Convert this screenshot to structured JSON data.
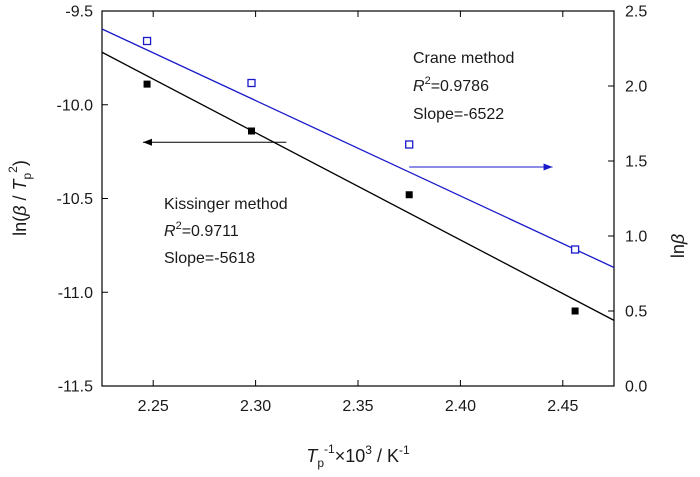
{
  "chart_data": {
    "type": "scatter",
    "x_title": {
      "base": "T",
      "sub": "p",
      "sup": "-1",
      "rest": "×10",
      "sup2": "3",
      "unit": " / K",
      "unit_sup": "-1"
    },
    "y_left_title": {
      "pre": "ln(",
      "beta": "β",
      "slash": " / ",
      "T": "T",
      "sub": "p",
      "sup": "2",
      "post": ")"
    },
    "y_right_title": {
      "ln": "ln",
      "beta": "β"
    },
    "x_range": [
      2.225,
      2.475
    ],
    "y_left_range": [
      -11.5,
      -9.5
    ],
    "y_right_range": [
      0.0,
      2.5
    ],
    "x_ticks": [
      "2.25",
      "2.30",
      "2.35",
      "2.40",
      "2.45"
    ],
    "y_left_ticks": [
      "-9.5",
      "-10.0",
      "-10.5",
      "-11.0",
      "-11.5"
    ],
    "y_right_ticks": [
      "2.5",
      "2.0",
      "1.5",
      "1.0",
      "0.5",
      "0.0"
    ],
    "series": [
      {
        "axis": "left",
        "marker": "filled-square",
        "color": "#000000",
        "x": [
          2.247,
          2.298,
          2.375,
          2.456
        ],
        "y": [
          -9.89,
          -10.14,
          -10.48,
          -11.1
        ],
        "fit_line": {
          "x": [
            2.225,
            2.475
          ],
          "y": [
            -9.72,
            -11.15
          ]
        }
      },
      {
        "axis": "right",
        "marker": "open-square",
        "color": "#1a1acc",
        "x": [
          2.247,
          2.298,
          2.375,
          2.456
        ],
        "y": [
          2.3,
          2.02,
          1.61,
          0.91
        ],
        "fit_line": {
          "x": [
            2.225,
            2.475
          ],
          "y": [
            2.38,
            0.79
          ]
        }
      }
    ],
    "annotations": {
      "crane": {
        "title": "Crane method",
        "r_label": "R",
        "r_sup": "2",
        "r_value": "=0.9786",
        "slope": "Slope=-6522"
      },
      "kissinger": {
        "title": "Kissinger method",
        "r_label": "R",
        "r_sup": "2",
        "r_value": "=0.9711",
        "slope": "Slope=-5618"
      }
    },
    "arrows": [
      {
        "series": "left",
        "direction": "left",
        "from": {
          "x": 2.315,
          "y": -10.2
        },
        "to": {
          "x": 2.245,
          "y": -10.2
        }
      },
      {
        "series": "right",
        "direction": "right",
        "from": {
          "x": 2.375,
          "y": 1.46
        },
        "to": {
          "x": 2.445,
          "y": 1.46
        }
      }
    ]
  }
}
